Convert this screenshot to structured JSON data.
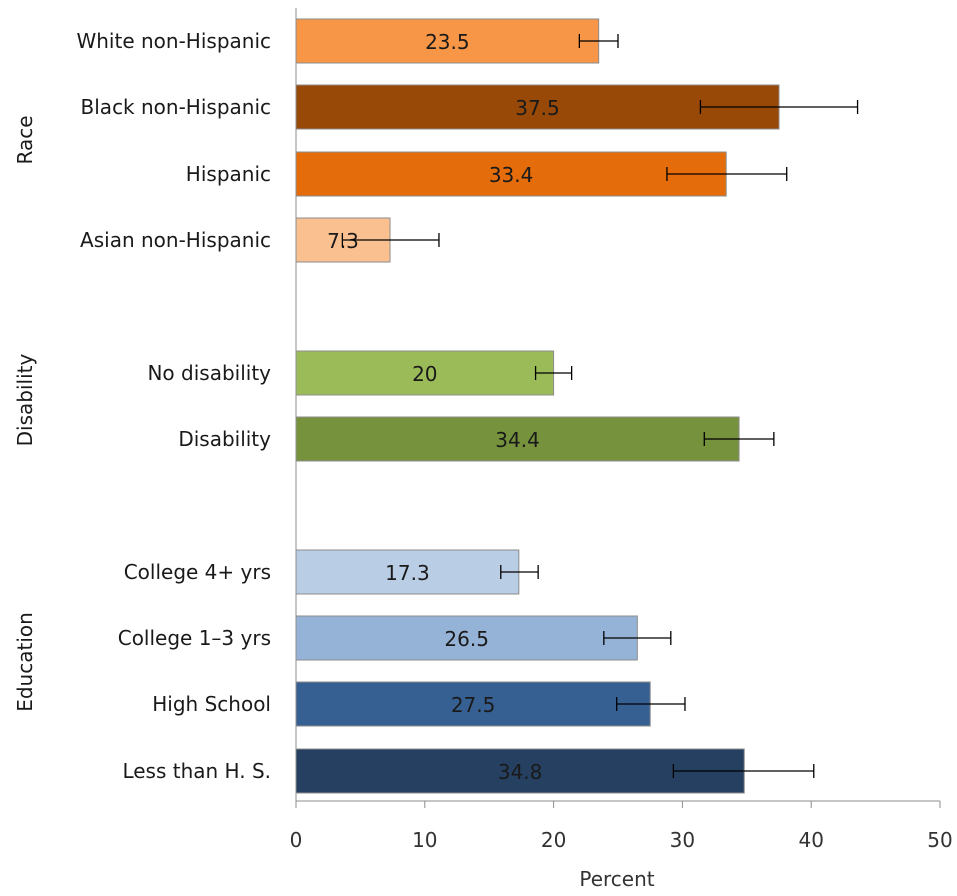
{
  "chart_data": {
    "type": "bar",
    "orientation": "horizontal",
    "xlabel": "Percent",
    "xlim": [
      0,
      50
    ],
    "xticks": [
      0,
      10,
      20,
      30,
      40,
      50
    ],
    "grid": false,
    "legend": "none",
    "groups": [
      {
        "name": "Race",
        "bars": [
          {
            "category": "White non-Hispanic",
            "value": 23.5,
            "label": "23.5",
            "err_low": 22.0,
            "err_high": 25.0,
            "color": "#f79646"
          },
          {
            "category": "Black non-Hispanic",
            "value": 37.5,
            "label": "37.5",
            "err_low": 31.4,
            "err_high": 43.6,
            "color": "#984807"
          },
          {
            "category": "Hispanic",
            "value": 33.4,
            "label": "33.4",
            "err_low": 28.8,
            "err_high": 38.1,
            "color": "#e46c0a"
          },
          {
            "category": "Asian non-Hispanic",
            "value": 7.3,
            "label": "7.3",
            "err_low": 3.6,
            "err_high": 11.1,
            "color": "#fac090"
          }
        ]
      },
      {
        "name": "Disability",
        "bars": [
          {
            "category": "No disability",
            "value": 20,
            "label": "20",
            "err_low": 18.6,
            "err_high": 21.4,
            "color": "#9bbb59"
          },
          {
            "category": "Disability",
            "value": 34.4,
            "label": "34.4",
            "err_low": 31.7,
            "err_high": 37.1,
            "color": "#76923c"
          }
        ]
      },
      {
        "name": "Education",
        "bars": [
          {
            "category": "College 4+ yrs",
            "value": 17.3,
            "label": "17.3",
            "err_low": 15.9,
            "err_high": 18.8,
            "color": "#b9cde5"
          },
          {
            "category": "College 1–3 yrs",
            "value": 26.5,
            "label": "26.5",
            "err_low": 23.9,
            "err_high": 29.1,
            "color": "#95b3d7"
          },
          {
            "category": "High School",
            "value": 27.5,
            "label": "27.5",
            "err_low": 24.9,
            "err_high": 30.2,
            "color": "#376092"
          },
          {
            "category": "Less than H. S.",
            "value": 34.8,
            "label": "34.8",
            "err_low": 29.3,
            "err_high": 40.2,
            "color": "#254061"
          }
        ]
      }
    ]
  }
}
